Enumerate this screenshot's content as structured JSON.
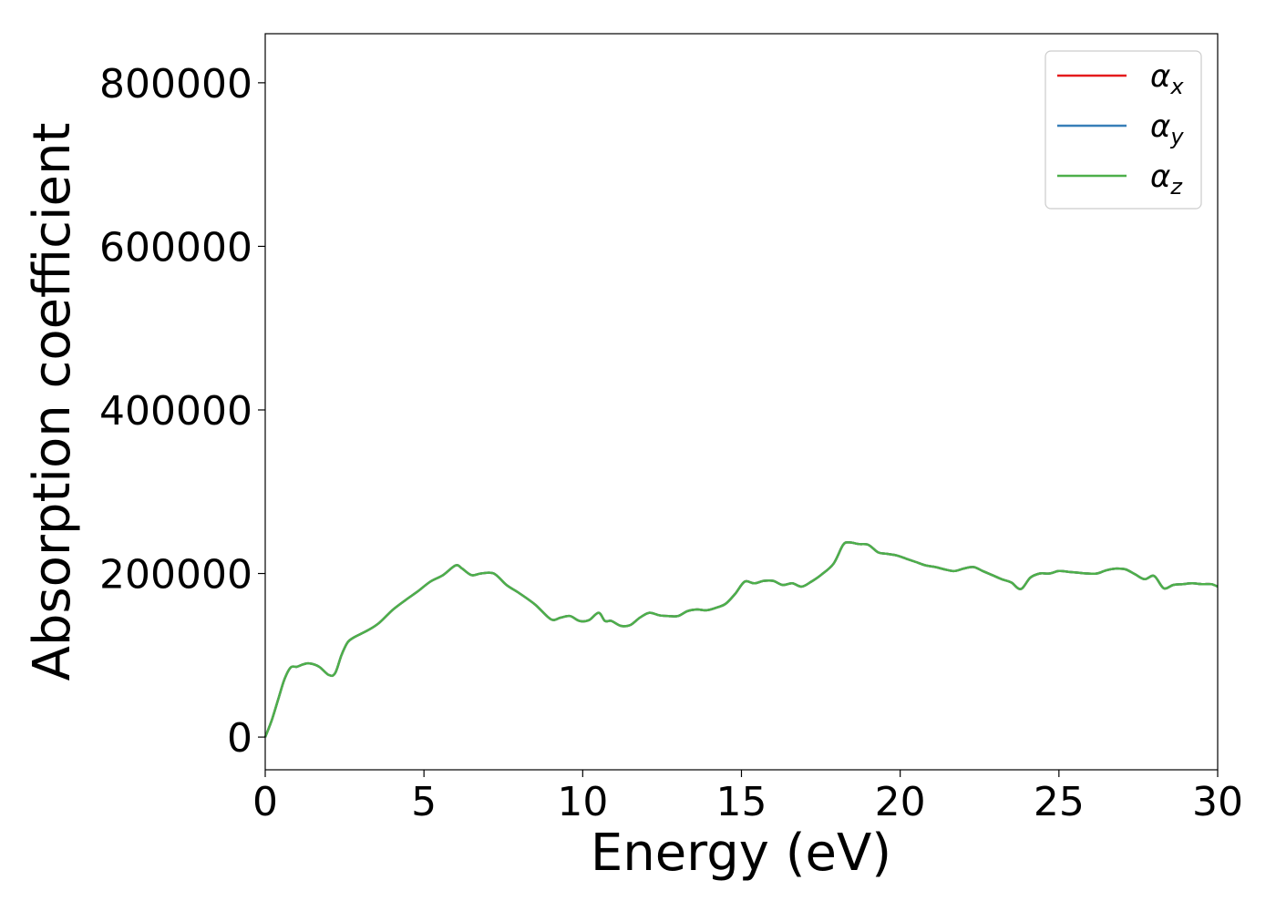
{
  "chart_data": {
    "type": "line",
    "xlabel": "Energy (eV)",
    "ylabel": "Absorption coefficient",
    "xlim": [
      0,
      30
    ],
    "ylim": [
      -40000,
      860000
    ],
    "xticks": [
      0,
      5,
      10,
      15,
      20,
      25,
      30
    ],
    "yticks": [
      0,
      200000,
      400000,
      600000,
      800000
    ],
    "grid": false,
    "legend_position": "top-right",
    "series": [
      {
        "name": "α",
        "subscript": "x",
        "color": "#e41a1c"
      },
      {
        "name": "α",
        "subscript": "y",
        "color": "#377eb8"
      },
      {
        "name": "α",
        "subscript": "z",
        "color": "#4daf4a"
      }
    ],
    "x": [
      0,
      0.2,
      0.4,
      0.6,
      0.8,
      1.0,
      1.2,
      1.4,
      1.7,
      2.0,
      2.2,
      2.4,
      2.6,
      2.8,
      3.0,
      3.3,
      3.6,
      4.0,
      4.4,
      4.8,
      5.2,
      5.6,
      6.0,
      6.2,
      6.5,
      6.8,
      7.2,
      7.6,
      8.0,
      8.5,
      9.0,
      9.3,
      9.6,
      9.9,
      10.2,
      10.5,
      10.7,
      10.9,
      11.2,
      11.5,
      11.8,
      12.1,
      12.4,
      12.7,
      13.0,
      13.3,
      13.6,
      13.9,
      14.2,
      14.5,
      14.8,
      15.1,
      15.4,
      15.7,
      16.0,
      16.3,
      16.6,
      16.9,
      17.2,
      17.5,
      17.9,
      18.2,
      18.4,
      18.7,
      19.0,
      19.3,
      19.6,
      19.9,
      20.2,
      20.5,
      20.8,
      21.1,
      21.4,
      21.7,
      22.0,
      22.3,
      22.6,
      22.9,
      23.2,
      23.5,
      23.8,
      24.1,
      24.4,
      24.7,
      25.0,
      25.3,
      25.6,
      25.9,
      26.2,
      26.5,
      26.8,
      27.1,
      27.4,
      27.7,
      28.0,
      28.3,
      28.6,
      28.9,
      29.2,
      29.5,
      29.8,
      30.0
    ],
    "y": [
      0,
      20000,
      45000,
      70000,
      85000,
      86000,
      89000,
      90000,
      86000,
      76000,
      78000,
      100000,
      116000,
      122000,
      126000,
      132000,
      140000,
      155000,
      167000,
      178000,
      190000,
      198000,
      210000,
      206000,
      198000,
      200000,
      200000,
      186000,
      176000,
      162000,
      144000,
      146000,
      148000,
      142000,
      143000,
      152000,
      142000,
      142000,
      136000,
      137000,
      146000,
      152000,
      149000,
      148000,
      148000,
      154000,
      156000,
      155000,
      158000,
      163000,
      175000,
      190000,
      188000,
      191000,
      191000,
      186000,
      188000,
      184000,
      190000,
      198000,
      212000,
      235000,
      238000,
      236000,
      235000,
      226000,
      224000,
      222000,
      218000,
      214000,
      210000,
      208000,
      205000,
      203000,
      206000,
      208000,
      203000,
      198000,
      193000,
      189000,
      181000,
      195000,
      200000,
      200000,
      203000,
      202000,
      201000,
      200000,
      200000,
      204000,
      206000,
      205000,
      199000,
      193000,
      197000,
      182000,
      186000,
      187000,
      188000,
      187000,
      187000,
      184000
    ]
  }
}
